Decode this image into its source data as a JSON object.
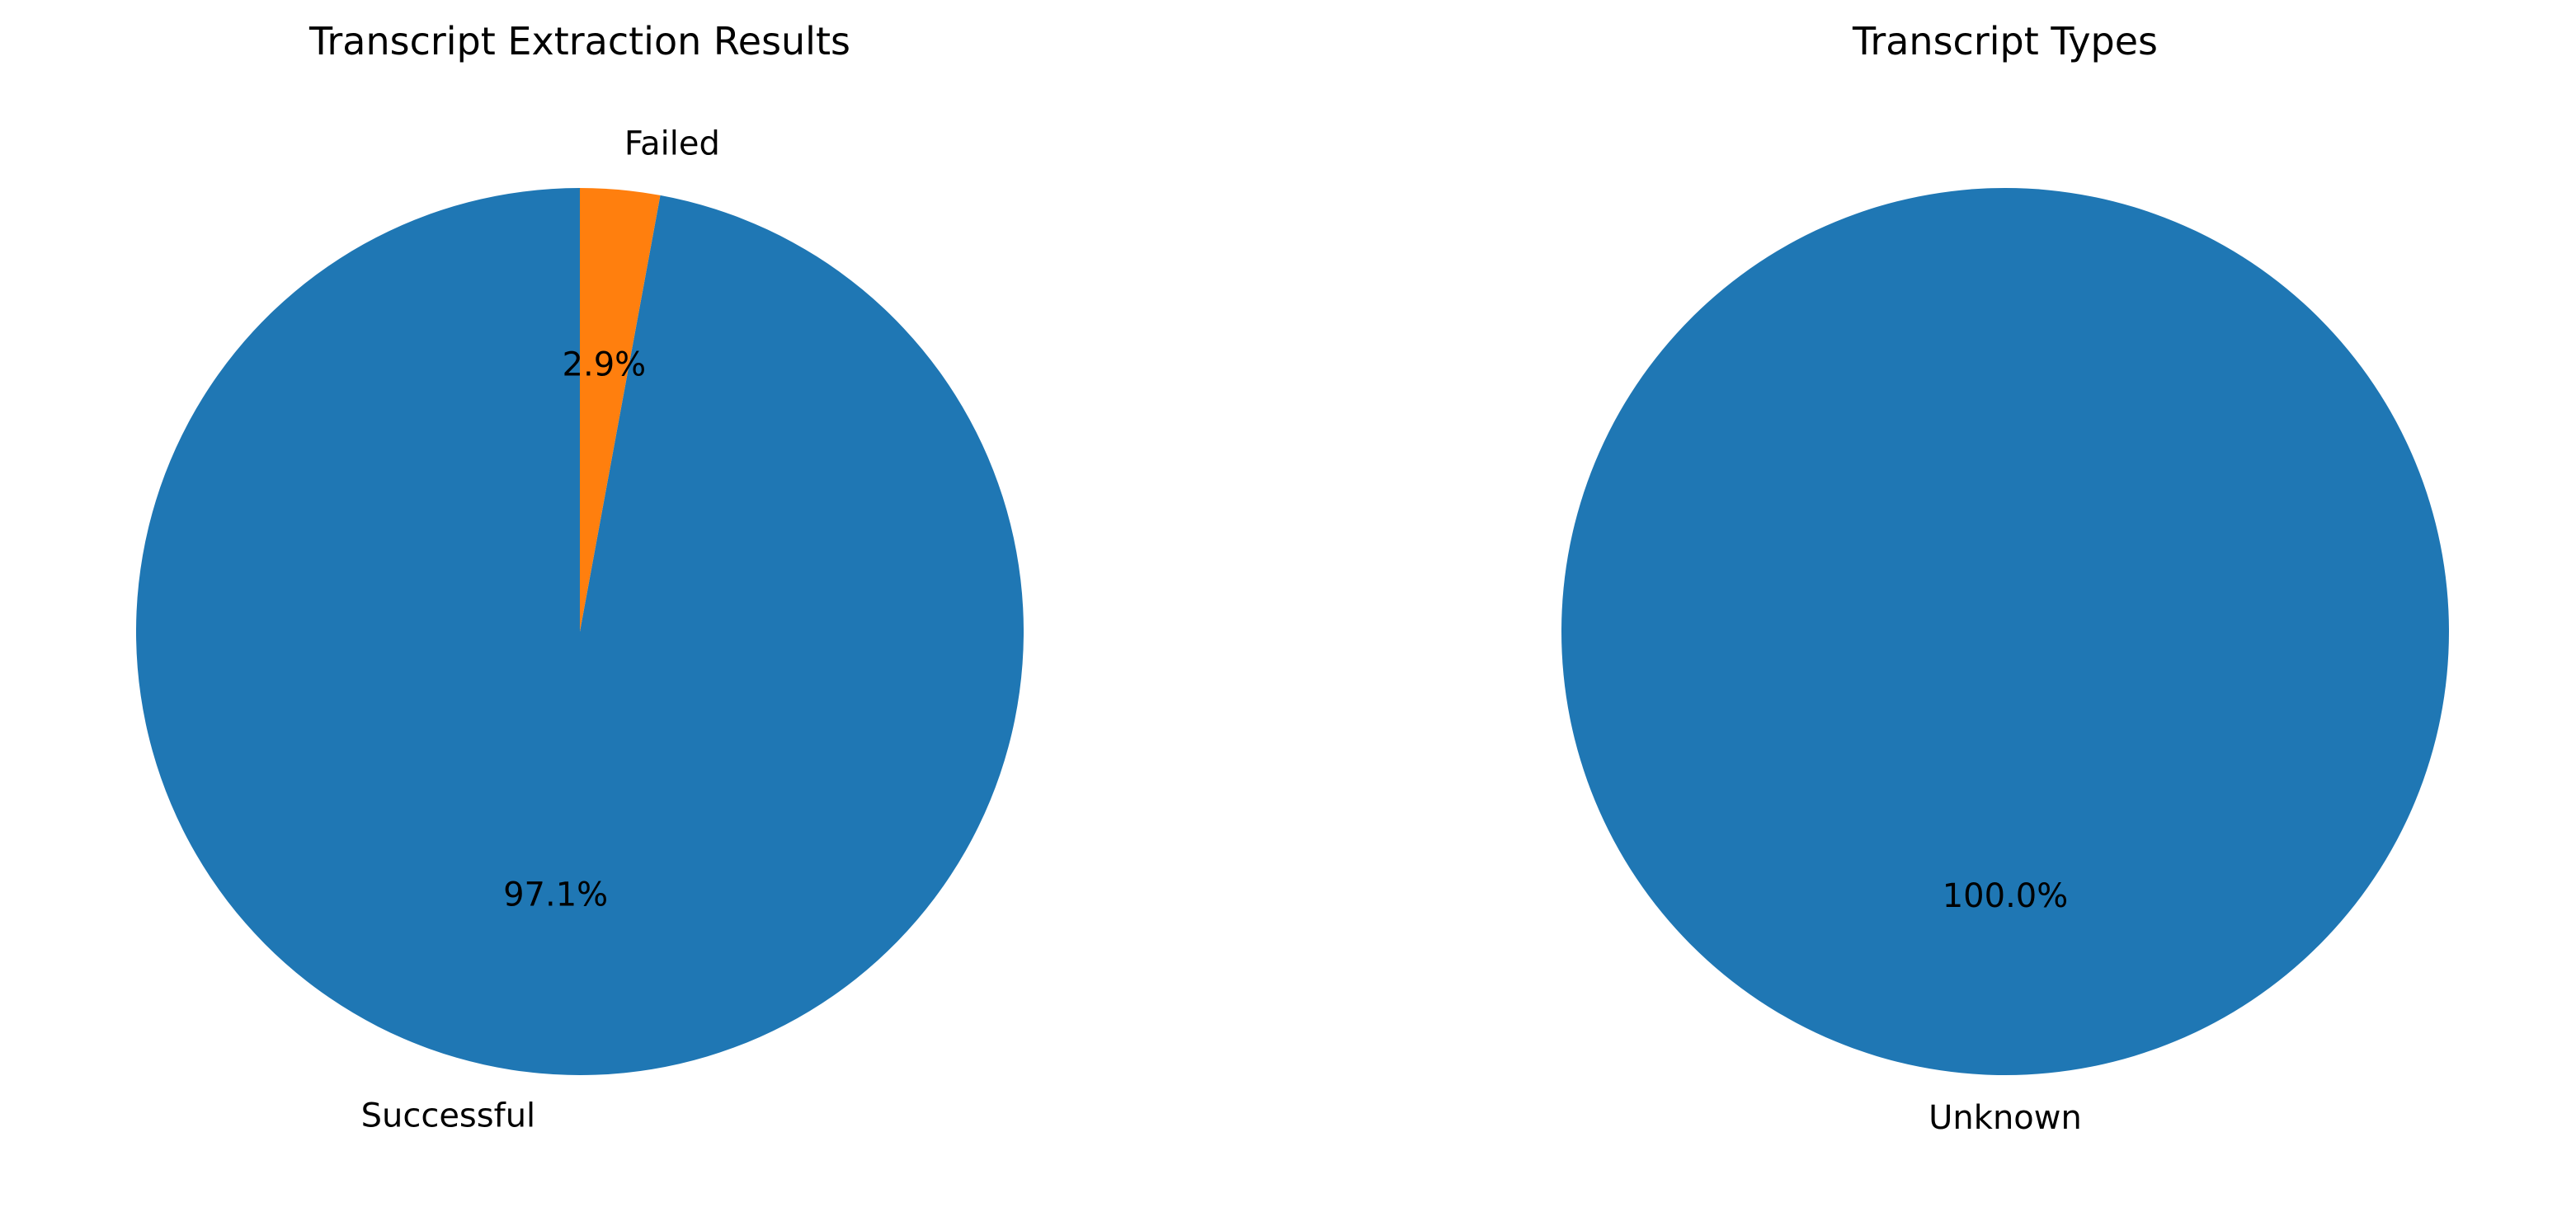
{
  "chart_data": [
    {
      "type": "pie",
      "title": "Transcript Extraction Results",
      "labels": [
        "Successful",
        "Failed"
      ],
      "values": [
        97.1,
        2.9
      ],
      "percent_labels": [
        "97.1%",
        "2.9%"
      ],
      "colors": [
        "#1f77b4",
        "#ff7f0e"
      ],
      "start_angle_deg": 90,
      "direction": "counterclockwise"
    },
    {
      "type": "pie",
      "title": "Transcript Types",
      "labels": [
        "Unknown"
      ],
      "values": [
        100.0
      ],
      "percent_labels": [
        "100.0%"
      ],
      "colors": [
        "#1f77b4"
      ],
      "start_angle_deg": 90,
      "direction": "counterclockwise"
    }
  ]
}
